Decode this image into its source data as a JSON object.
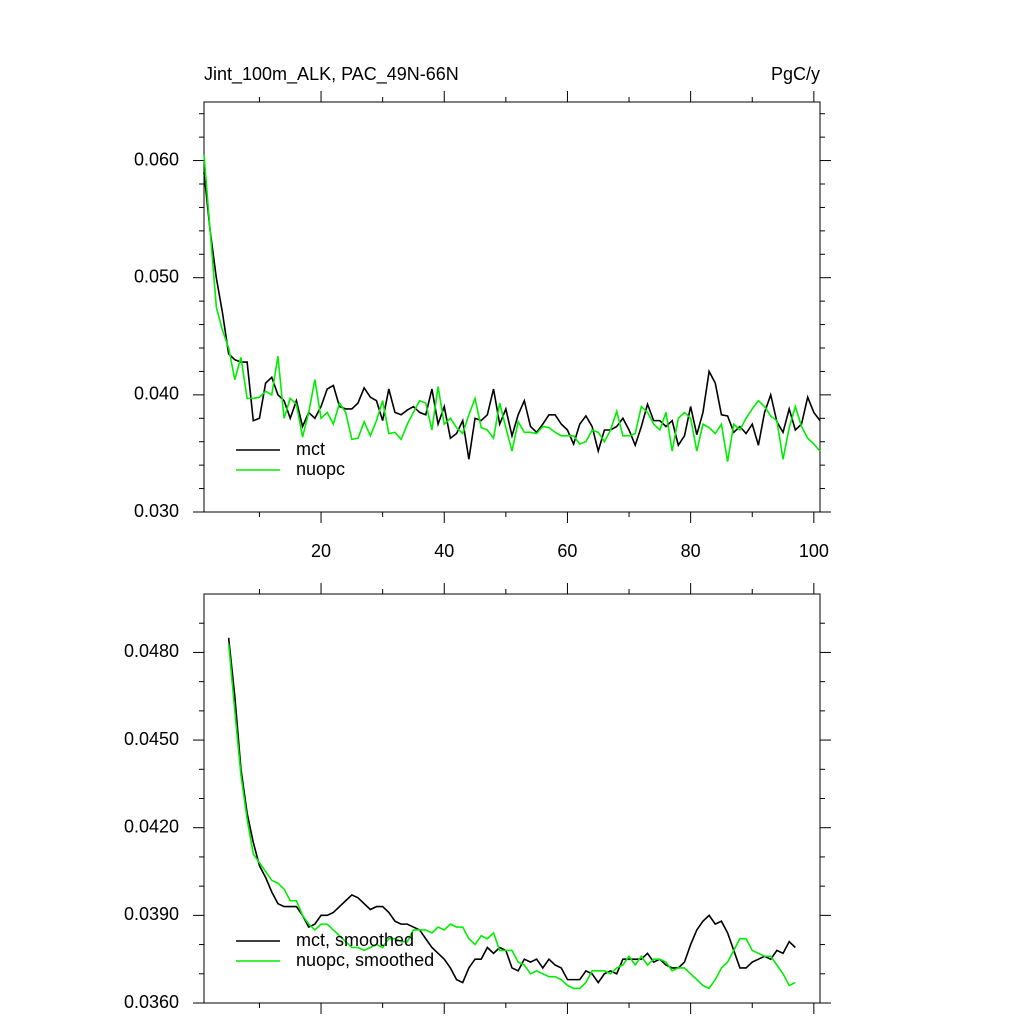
{
  "chart_data": [
    {
      "type": "line",
      "title": "Jint_100m_ALK, PAC_49N-66N",
      "units": "PgC/y",
      "x": [
        1,
        2,
        3,
        4,
        5,
        6,
        7,
        8,
        9,
        10,
        11,
        12,
        13,
        14,
        15,
        16,
        17,
        18,
        19,
        20,
        21,
        22,
        23,
        24,
        25,
        26,
        27,
        28,
        29,
        30,
        31,
        32,
        33,
        34,
        35,
        36,
        37,
        38,
        39,
        40,
        41,
        42,
        43,
        44,
        45,
        46,
        47,
        48,
        49,
        50,
        51,
        52,
        53,
        54,
        55,
        56,
        57,
        58,
        59,
        60,
        61,
        62,
        63,
        64,
        65,
        66,
        67,
        68,
        69,
        70,
        71,
        72,
        73,
        74,
        75,
        76,
        77,
        78,
        79,
        80,
        81,
        82,
        83,
        84,
        85,
        86,
        87,
        88,
        89,
        90,
        91,
        92,
        93,
        94,
        95,
        96,
        97,
        98,
        99,
        100,
        101
      ],
      "series": [
        {
          "name": "mct",
          "color": "#000000",
          "values": [
            0.059,
            0.054,
            0.05,
            0.047,
            0.0435,
            0.043,
            0.0428,
            0.0428,
            0.0378,
            0.038,
            0.041,
            0.0415,
            0.04,
            0.0395,
            0.038,
            0.0395,
            0.0373,
            0.0385,
            0.038,
            0.039,
            0.0405,
            0.0408,
            0.039,
            0.0388,
            0.0388,
            0.0393,
            0.0406,
            0.0398,
            0.0395,
            0.0378,
            0.0405,
            0.0385,
            0.0383,
            0.0387,
            0.039,
            0.0385,
            0.0383,
            0.0405,
            0.0375,
            0.039,
            0.0363,
            0.0367,
            0.0378,
            0.0345,
            0.038,
            0.0378,
            0.0383,
            0.0405,
            0.0375,
            0.0388,
            0.0365,
            0.0383,
            0.0395,
            0.0373,
            0.0368,
            0.0375,
            0.0383,
            0.0383,
            0.0375,
            0.037,
            0.0358,
            0.0375,
            0.0382,
            0.0373,
            0.0352,
            0.037,
            0.037,
            0.0373,
            0.038,
            0.037,
            0.0357,
            0.0373,
            0.0392,
            0.0378,
            0.0378,
            0.0373,
            0.0378,
            0.0357,
            0.0365,
            0.039,
            0.0366,
            0.0385,
            0.042,
            0.041,
            0.0383,
            0.0382,
            0.0368,
            0.0373,
            0.0367,
            0.0375,
            0.0357,
            0.0385,
            0.04,
            0.0377,
            0.0368,
            0.0388,
            0.037,
            0.0375,
            0.0398,
            0.0385,
            0.0378
          ]
        },
        {
          "name": "nuopc",
          "color": "#00ee00",
          "values": [
            0.0605,
            0.054,
            0.0475,
            0.0455,
            0.044,
            0.0413,
            0.0432,
            0.0397,
            0.0397,
            0.0398,
            0.0403,
            0.04,
            0.0433,
            0.038,
            0.0397,
            0.0392,
            0.0364,
            0.0385,
            0.0413,
            0.038,
            0.0385,
            0.0375,
            0.0393,
            0.0385,
            0.0362,
            0.0363,
            0.0377,
            0.0365,
            0.0378,
            0.0395,
            0.0367,
            0.0368,
            0.0362,
            0.0375,
            0.0385,
            0.0395,
            0.0393,
            0.037,
            0.0407,
            0.0375,
            0.038,
            0.0372,
            0.0367,
            0.0383,
            0.0397,
            0.0372,
            0.037,
            0.0363,
            0.0393,
            0.0372,
            0.0352,
            0.0377,
            0.0368,
            0.0368,
            0.0367,
            0.0373,
            0.0372,
            0.0368,
            0.0365,
            0.0365,
            0.0365,
            0.0358,
            0.036,
            0.037,
            0.0368,
            0.036,
            0.037,
            0.0386,
            0.0365,
            0.0365,
            0.0367,
            0.039,
            0.0385,
            0.0375,
            0.037,
            0.0385,
            0.0352,
            0.038,
            0.0385,
            0.038,
            0.0352,
            0.0375,
            0.0372,
            0.0367,
            0.0375,
            0.0343,
            0.0375,
            0.037,
            0.038,
            0.0388,
            0.0395,
            0.039,
            0.0382,
            0.0378,
            0.0345,
            0.0372,
            0.039,
            0.0373,
            0.0363,
            0.0358,
            0.0352
          ]
        }
      ],
      "xlim": [
        1,
        101
      ],
      "xticks": [
        20,
        40,
        60,
        80,
        100
      ],
      "xminorticks": [
        10,
        30,
        50,
        70,
        90
      ],
      "show_xtick_labels": true,
      "ylim": [
        0.03,
        0.065
      ],
      "yticks": [
        {
          "value": 0.03,
          "label": "0.030"
        },
        {
          "value": 0.04,
          "label": "0.040"
        },
        {
          "value": 0.05,
          "label": "0.050"
        },
        {
          "value": 0.06,
          "label": "0.060"
        }
      ],
      "yminorticks": [
        0.032,
        0.034,
        0.036,
        0.038,
        0.042,
        0.044,
        0.046,
        0.048,
        0.052,
        0.054,
        0.056,
        0.058,
        0.062,
        0.064
      ],
      "legend": "lower left"
    },
    {
      "type": "line",
      "x": [
        5,
        6,
        7,
        8,
        9,
        10,
        11,
        12,
        13,
        14,
        15,
        16,
        17,
        18,
        19,
        20,
        21,
        22,
        23,
        24,
        25,
        26,
        27,
        28,
        29,
        30,
        31,
        32,
        33,
        34,
        35,
        36,
        37,
        38,
        39,
        40,
        41,
        42,
        43,
        44,
        45,
        46,
        47,
        48,
        49,
        50,
        51,
        52,
        53,
        54,
        55,
        56,
        57,
        58,
        59,
        60,
        61,
        62,
        63,
        64,
        65,
        66,
        67,
        68,
        69,
        70,
        71,
        72,
        73,
        74,
        75,
        76,
        77,
        78,
        79,
        80,
        81,
        82,
        83,
        84,
        85,
        86,
        87,
        88,
        89,
        90,
        91,
        92,
        93,
        94,
        95,
        96,
        97
      ],
      "series": [
        {
          "name": "mct, smoothed",
          "color": "#000000",
          "values": [
            0.0485,
            0.0465,
            0.044,
            0.0425,
            0.0415,
            0.0407,
            0.0403,
            0.0398,
            0.0394,
            0.0393,
            0.0393,
            0.0393,
            0.039,
            0.0386,
            0.0387,
            0.039,
            0.039,
            0.0391,
            0.0393,
            0.0395,
            0.0397,
            0.0396,
            0.0394,
            0.0392,
            0.0393,
            0.0393,
            0.0391,
            0.0388,
            0.0387,
            0.0387,
            0.0386,
            0.0385,
            0.0382,
            0.0379,
            0.0377,
            0.0375,
            0.0372,
            0.0368,
            0.0367,
            0.0372,
            0.0375,
            0.0375,
            0.0379,
            0.0377,
            0.0379,
            0.0378,
            0.0372,
            0.0371,
            0.0375,
            0.0374,
            0.0375,
            0.0372,
            0.0375,
            0.0373,
            0.0372,
            0.0368,
            0.0368,
            0.0368,
            0.0371,
            0.037,
            0.0367,
            0.037,
            0.0371,
            0.037,
            0.0375,
            0.0375,
            0.0375,
            0.0375,
            0.0377,
            0.0374,
            0.0375,
            0.0373,
            0.0372,
            0.0372,
            0.0374,
            0.038,
            0.0385,
            0.0388,
            0.039,
            0.0387,
            0.0388,
            0.0384,
            0.0378,
            0.0372,
            0.0372,
            0.0374,
            0.0375,
            0.0376,
            0.0375,
            0.0378,
            0.0377,
            0.0381,
            0.0379
          ]
        },
        {
          "name": "nuopc, smoothed",
          "color": "#00ee00",
          "values": [
            0.0483,
            0.046,
            0.0438,
            0.0423,
            0.0411,
            0.0408,
            0.0405,
            0.0402,
            0.0401,
            0.0399,
            0.0395,
            0.0395,
            0.039,
            0.0387,
            0.0385,
            0.0387,
            0.0387,
            0.0385,
            0.0383,
            0.0381,
            0.0379,
            0.0379,
            0.0378,
            0.0379,
            0.038,
            0.0379,
            0.0382,
            0.0382,
            0.0381,
            0.0381,
            0.0385,
            0.0385,
            0.0385,
            0.0384,
            0.0386,
            0.0385,
            0.0387,
            0.0386,
            0.0386,
            0.0382,
            0.038,
            0.0383,
            0.0382,
            0.0384,
            0.0378,
            0.0378,
            0.0378,
            0.0374,
            0.0373,
            0.037,
            0.0371,
            0.037,
            0.0369,
            0.0369,
            0.0368,
            0.0366,
            0.0365,
            0.0365,
            0.0367,
            0.0371,
            0.0371,
            0.0371,
            0.037,
            0.0372,
            0.0373,
            0.0376,
            0.0373,
            0.0376,
            0.0373,
            0.0375,
            0.0375,
            0.0374,
            0.0371,
            0.0372,
            0.0372,
            0.037,
            0.0368,
            0.0366,
            0.0365,
            0.0368,
            0.0372,
            0.0374,
            0.0378,
            0.0382,
            0.0382,
            0.0378,
            0.0377,
            0.0376,
            0.0376,
            0.0373,
            0.037,
            0.0366,
            0.0367
          ]
        }
      ],
      "xlim": [
        1,
        101
      ],
      "xticks": [
        20,
        40,
        60,
        80,
        100
      ],
      "xminorticks": [
        10,
        30,
        50,
        70,
        90
      ],
      "show_xtick_labels": false,
      "ylim": [
        0.036,
        0.05
      ],
      "yticks": [
        {
          "value": 0.036,
          "label": "0.0360"
        },
        {
          "value": 0.039,
          "label": "0.0390"
        },
        {
          "value": 0.042,
          "label": "0.0420"
        },
        {
          "value": 0.045,
          "label": "0.0450"
        },
        {
          "value": 0.048,
          "label": "0.0480"
        }
      ],
      "yminorticks": [
        0.037,
        0.038,
        0.04,
        0.041,
        0.043,
        0.044,
        0.046,
        0.047,
        0.049
      ],
      "legend": "lower left"
    }
  ]
}
